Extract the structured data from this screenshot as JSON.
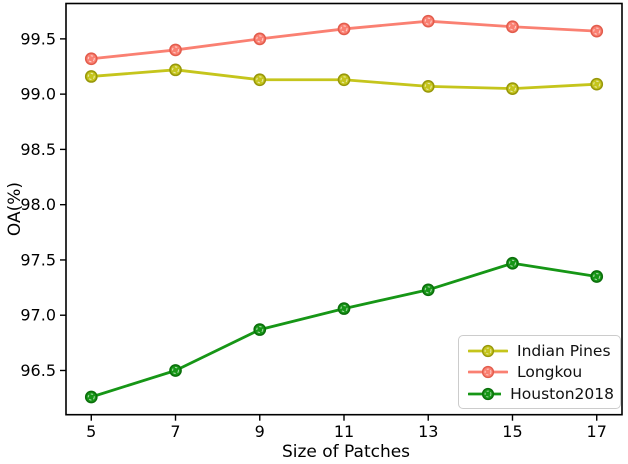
{
  "chart_data": {
    "type": "line",
    "title": "",
    "xlabel": "Size of Patches",
    "ylabel": "OA(%)",
    "x": [
      5,
      7,
      9,
      11,
      13,
      15,
      17
    ],
    "xticks": [
      5,
      7,
      9,
      11,
      13,
      15,
      17
    ],
    "yticks": [
      96.5,
      97.0,
      97.5,
      98.0,
      98.5,
      99.0,
      99.5
    ],
    "xlim": [
      4.4,
      17.6
    ],
    "ylim": [
      96.1,
      99.82
    ],
    "grid": false,
    "legend_position": "lower right",
    "marker": "circle",
    "colors": {
      "spine": "#000000",
      "legend_border": "#cccccc",
      "marker_inner_ring": "rgba(255,255,255,0.6)"
    },
    "series": [
      {
        "name": "Indian Pines",
        "color": "#c5c51c",
        "edge_color": "#97970a",
        "values": [
          99.16,
          99.22,
          99.13,
          99.13,
          99.07,
          99.05,
          99.09
        ]
      },
      {
        "name": "Longkou",
        "color": "#fa8072",
        "edge_color": "#e25c4c",
        "values": [
          99.32,
          99.4,
          99.5,
          99.59,
          99.66,
          99.61,
          99.57
        ]
      },
      {
        "name": "Houston2018",
        "color": "#169616",
        "edge_color": "#0b6e0b",
        "values": [
          96.26,
          96.5,
          96.87,
          97.06,
          97.23,
          97.47,
          97.35
        ]
      }
    ]
  }
}
